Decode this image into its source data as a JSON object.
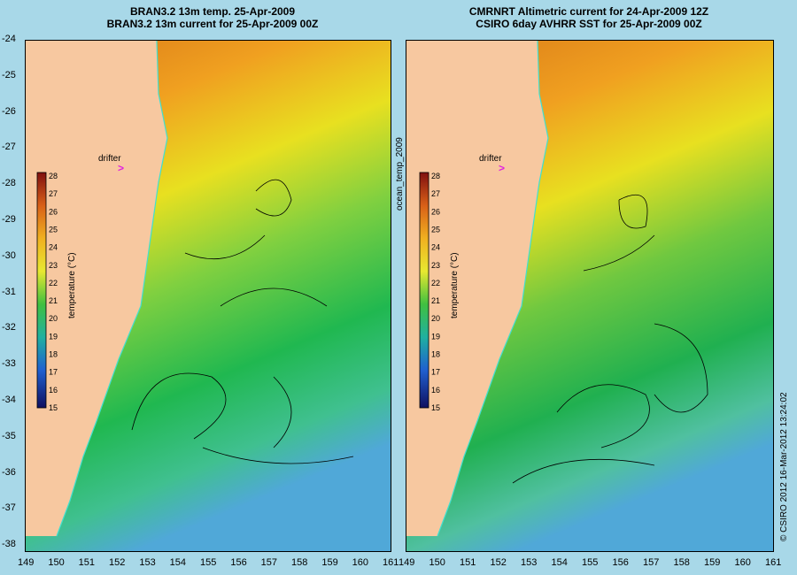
{
  "left_panel": {
    "title_line1": "BRAN3.2 13m temp. 25-Apr-2009",
    "title_line2": "BRAN3.2 13m current for 25-Apr-2009 00Z",
    "drifter_label": "drifter"
  },
  "right_panel": {
    "title_line1": "CMRNRT Altimetric current for 24-Apr-2009 12Z",
    "title_line2": "CSIRO 6day AVHRR SST for 25-Apr-2009 00Z",
    "drifter_label": "drifter"
  },
  "colorbar": {
    "label": "temperature (°C)",
    "ticks": [
      "28",
      "27",
      "26",
      "25",
      "24",
      "23",
      "22",
      "21",
      "20",
      "19",
      "18",
      "17",
      "16",
      "15"
    ]
  },
  "side_label": "ocean_temp_2009",
  "credit": "© CSIRO 2012   16-Mar-2012 13:24:02",
  "x_ticks_left": [
    "149",
    "150",
    "151",
    "152",
    "153",
    "154",
    "155",
    "156",
    "157",
    "158",
    "159",
    "160",
    "161"
  ],
  "x_ticks_right": [
    "149",
    "150",
    "151",
    "152",
    "153",
    "154",
    "155",
    "156",
    "157",
    "158",
    "159",
    "160",
    "161"
  ],
  "y_ticks": [
    "-24",
    "-25",
    "-26",
    "-27",
    "-28",
    "-29",
    "-30",
    "-31",
    "-32",
    "-33",
    "-34",
    "-35",
    "-36",
    "-37",
    "-38"
  ],
  "colors": {
    "background": "#a8d8e8",
    "land": "#f7c8a0",
    "drifter_marker": "#e020e0",
    "coastline": "#40e0d0"
  }
}
